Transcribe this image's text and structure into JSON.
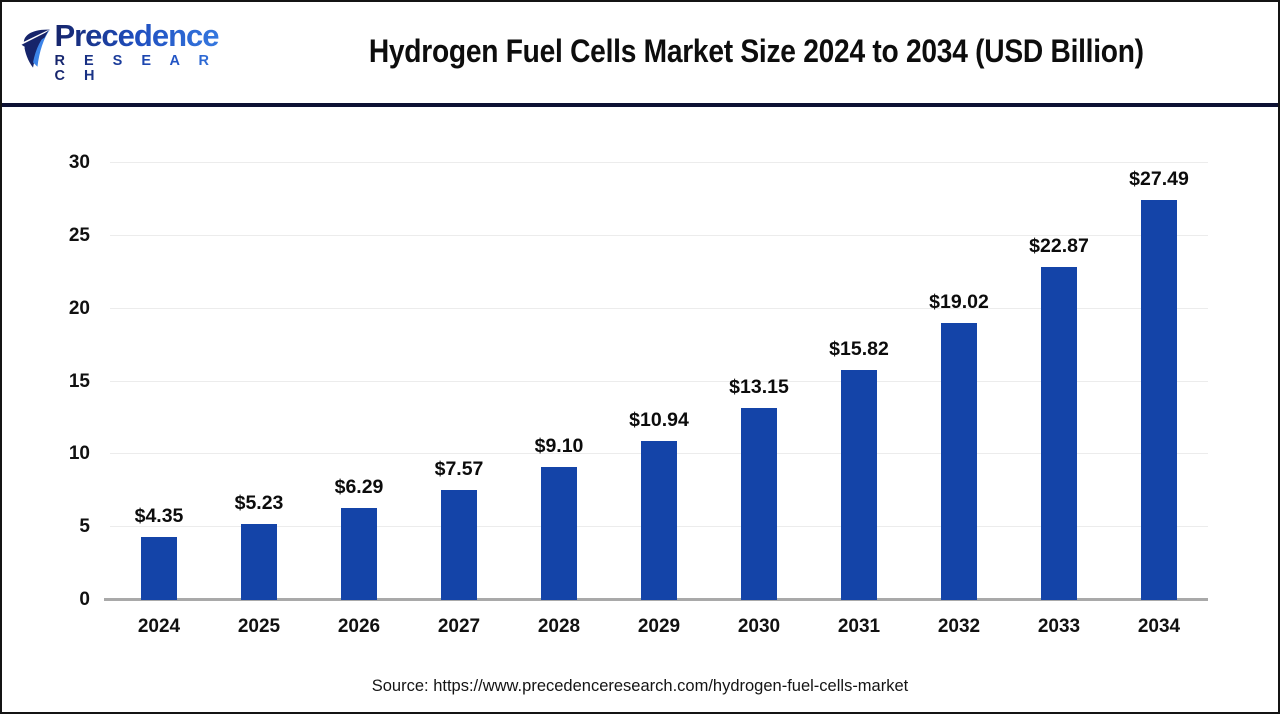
{
  "logo": {
    "brand": "Precedence",
    "subtitle": "R E S E A R C H"
  },
  "header": {
    "title": "Hydrogen Fuel Cells Market Size 2024 to 2034 (USD Billion)"
  },
  "chart_data": {
    "type": "bar",
    "title": "Hydrogen Fuel Cells Market Size 2024 to 2034 (USD Billion)",
    "categories": [
      "2024",
      "2025",
      "2026",
      "2027",
      "2028",
      "2029",
      "2030",
      "2031",
      "2032",
      "2033",
      "2034"
    ],
    "values": [
      4.35,
      5.23,
      6.29,
      7.57,
      9.1,
      10.94,
      13.15,
      15.82,
      19.02,
      22.87,
      27.49
    ],
    "value_labels": [
      "$4.35",
      "$5.23",
      "$6.29",
      "$7.57",
      "$9.10",
      "$10.94",
      "$13.15",
      "$15.82",
      "$19.02",
      "$22.87",
      "$27.49"
    ],
    "y_ticks": [
      0,
      5,
      10,
      15,
      20,
      25,
      30
    ],
    "ylim": [
      0,
      30
    ],
    "xlabel": "",
    "ylabel": "",
    "grid": true,
    "legend": "none",
    "bar_color": "#1444a8"
  },
  "footer": {
    "source": "Source: https://www.precedenceresearch.com/hydrogen-fuel-cells-market"
  },
  "colors": {
    "bar": "#1444a8",
    "gridline": "#ececec",
    "axis_line": "#a9a9a9",
    "header_divider": "#0d1133",
    "title_text": "#0d0d0d",
    "logo_dark": "#16246a",
    "logo_light": "#3c84e8"
  }
}
